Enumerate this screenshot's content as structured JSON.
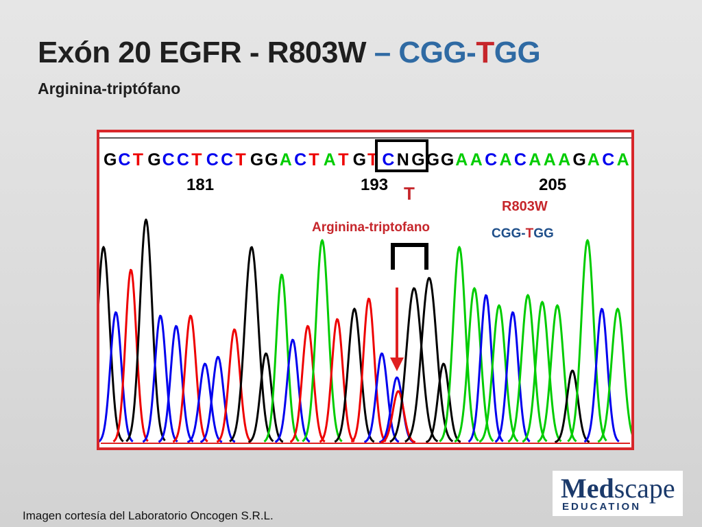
{
  "slide": {
    "title_main": "Exón 20 EGFR -  R803W ",
    "title_dash": "– C",
    "title_gg1": "GG-",
    "title_t": "T",
    "title_gg2": "GG",
    "subtitle": "Arginina-triptófano",
    "credit": "Imagen cortesía del Laboratorio Oncogen S.R.L."
  },
  "chromatogram": {
    "sequence": "GCTGCCTCCTGGACTATGTCNGGGAACACAAAGACA",
    "position_labels": [
      "181",
      "193",
      "205"
    ],
    "highlighted_bases": "CNG",
    "annotation_base": "T",
    "annotation_text": "Arginina-triptofano",
    "mutation": "R803W",
    "codon_c": "C",
    "codon_gg1": "GG-",
    "codon_t": "T",
    "codon_gg2": "GG",
    "colors": {
      "A": "#00cc00",
      "C": "#0000ee",
      "G": "#000000",
      "T": "#ee0000",
      "frame": "#d8262a",
      "label_red": "#c6262b",
      "codon_blue": "#1f4f8a"
    }
  },
  "logo": {
    "brand_bold": "Med",
    "brand_rest": "scape",
    "sub": "EDUCATION"
  }
}
